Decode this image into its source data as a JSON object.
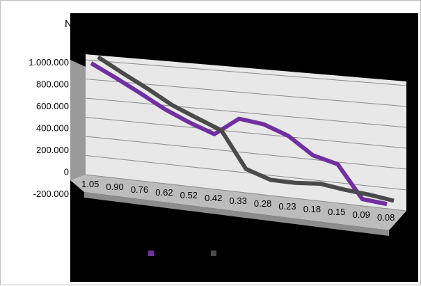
{
  "chart_data": {
    "type": "line",
    "title": "N",
    "categories": [
      "1.05",
      "0.90",
      "0.76",
      "0.62",
      "0.52",
      "0.42",
      "0.33",
      "0.28",
      "0.23",
      "0.18",
      "0.15",
      "0.09",
      "0.08"
    ],
    "series": [
      {
        "color": "#7030a0",
        "values": [
          965000,
          835000,
          700000,
          560000,
          450000,
          360000,
          540000,
          510000,
          420000,
          255000,
          195000,
          -115000,
          -135000
        ]
      },
      {
        "color": "#4a4a4a",
        "values": [
          1000000,
          855000,
          720000,
          575000,
          470000,
          370000,
          10000,
          -70000,
          -70000,
          -50000,
          -80000,
          -100000,
          -130000
        ]
      }
    ],
    "yticks": [
      "1.000.000",
      "800.000",
      "600.000",
      "400.000",
      "200.000",
      "0",
      "-200.000"
    ],
    "ylim": [
      -200000,
      1000000
    ],
    "grid": true,
    "legend": "bottom",
    "plot_background": "#000000",
    "wall_color": "#e8e8e8"
  }
}
